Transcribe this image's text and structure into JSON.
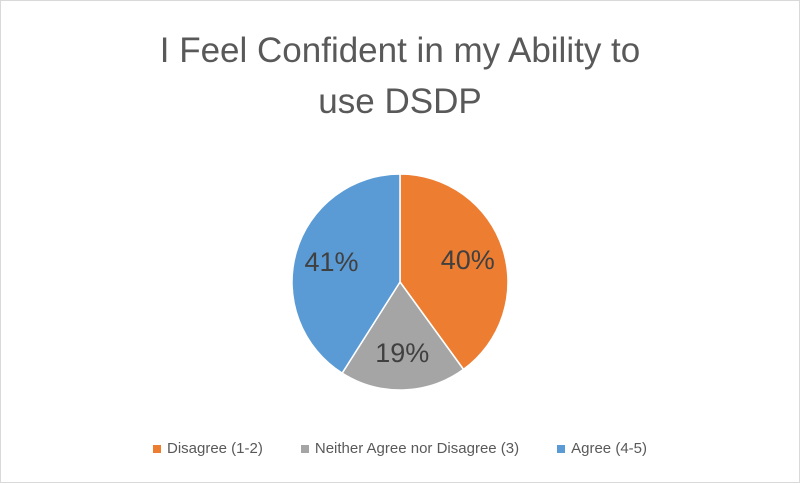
{
  "chart_data": {
    "type": "pie",
    "title_lines": [
      "I Feel Confident in my Ability to",
      "use DSDP"
    ],
    "categories": [
      "Disagree (1-2)",
      "Neither Agree nor Disagree (3)",
      "Agree (4-5)"
    ],
    "values": [
      40,
      19,
      41
    ],
    "data_labels": [
      "40%",
      "19%",
      "41%"
    ],
    "colors": [
      "#ED7D31",
      "#A5A5A5",
      "#5B9BD5"
    ],
    "legend_position": "bottom"
  }
}
